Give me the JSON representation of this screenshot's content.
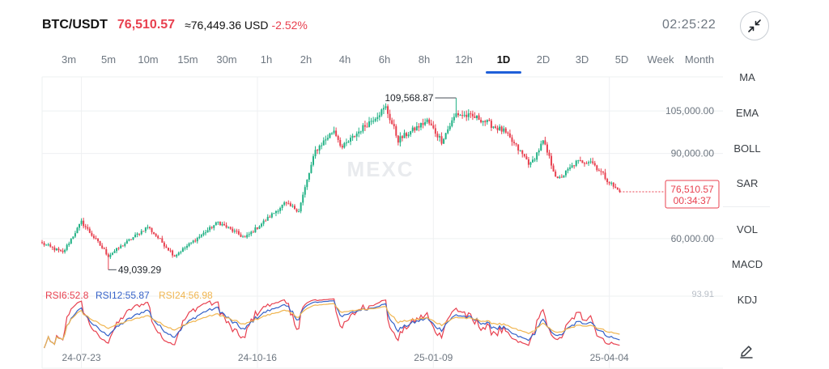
{
  "header": {
    "pair": "BTC/USDT",
    "price": "76,510.57",
    "approx": "≈76,449.36 USD",
    "change": "-2.52%",
    "clock": "02:25:22"
  },
  "timeframes": {
    "items": [
      "3m",
      "5m",
      "10m",
      "15m",
      "30m",
      "1h",
      "2h",
      "4h",
      "6h",
      "8h",
      "12h",
      "1D",
      "2D",
      "3D",
      "5D",
      "Week",
      "Month"
    ],
    "active": "1D"
  },
  "indicators": {
    "ma": "MA",
    "ema": "EMA",
    "boll": "BOLL",
    "sar": "SAR",
    "vol": "VOL",
    "macd": "MACD",
    "kdj": "KDJ"
  },
  "watermark": "MEXC",
  "icons": {
    "collapse": "collapse-arrows-icon",
    "edit": "pencil-icon"
  },
  "colors": {
    "up": "#21b185",
    "down": "#e8404f",
    "rsi6": "#e8404f",
    "rsi12": "#3461c8",
    "rsi24": "#f0b54f",
    "accent": "#1e5fd9"
  },
  "chart_data": {
    "type": "candlestick",
    "interval": "1D",
    "y_ticks": [
      "105,000.00",
      "90,000.00",
      "60,000.00"
    ],
    "y_tick_values": [
      105000,
      90000,
      60000
    ],
    "ylim": [
      42000,
      117000
    ],
    "x_ticks": [
      "24-07-23",
      "24-10-16",
      "25-01-09",
      "25-04-04"
    ],
    "x_range": [
      "2024-07-04",
      "2025-04-10"
    ],
    "grid": true,
    "annotations": {
      "high_label": "109,568.87",
      "high_value": 109568.87,
      "high_date": "2025-01-20",
      "low_label": "49,039.29",
      "low_value": 49039.29,
      "low_date": "2024-08-05"
    },
    "last_price": {
      "label": "76,510.57",
      "value": 76510.57,
      "countdown": "00:34:37"
    },
    "trend": [
      {
        "date": "2024-07-04",
        "close": 58300
      },
      {
        "date": "2024-07-14",
        "close": 55000
      },
      {
        "date": "2024-07-23",
        "close": 65900
      },
      {
        "date": "2024-08-05",
        "close": 54000
      },
      {
        "date": "2024-08-24",
        "close": 64200
      },
      {
        "date": "2024-09-06",
        "close": 54000
      },
      {
        "date": "2024-09-27",
        "close": 65800
      },
      {
        "date": "2024-10-10",
        "close": 60200
      },
      {
        "date": "2024-10-29",
        "close": 72300
      },
      {
        "date": "2024-11-05",
        "close": 70000
      },
      {
        "date": "2024-11-13",
        "close": 91000
      },
      {
        "date": "2024-11-22",
        "close": 98300
      },
      {
        "date": "2024-11-26",
        "close": 92000
      },
      {
        "date": "2024-12-05",
        "close": 98500
      },
      {
        "date": "2024-12-17",
        "close": 106200
      },
      {
        "date": "2024-12-23",
        "close": 94800
      },
      {
        "date": "2025-01-06",
        "close": 101500
      },
      {
        "date": "2025-01-13",
        "close": 94500
      },
      {
        "date": "2025-01-20",
        "close": 104000
      },
      {
        "date": "2025-01-31",
        "close": 102400
      },
      {
        "date": "2025-02-12",
        "close": 97800
      },
      {
        "date": "2025-02-25",
        "close": 86000
      },
      {
        "date": "2025-03-03",
        "close": 94200
      },
      {
        "date": "2025-03-10",
        "close": 80500
      },
      {
        "date": "2025-03-19",
        "close": 86900
      },
      {
        "date": "2025-03-26",
        "close": 87500
      },
      {
        "date": "2025-04-06",
        "close": 78300
      },
      {
        "date": "2025-04-09",
        "close": 76510.57
      }
    ],
    "rsi": {
      "labels": [
        "RSI6:52.8",
        "RSI12:55.87",
        "RSI24:56.98"
      ],
      "series": [
        {
          "name": "RSI6",
          "last": 52.8
        },
        {
          "name": "RSI12",
          "last": 55.87
        },
        {
          "name": "RSI24",
          "last": 56.98
        }
      ],
      "scale_label": "93.91"
    }
  }
}
